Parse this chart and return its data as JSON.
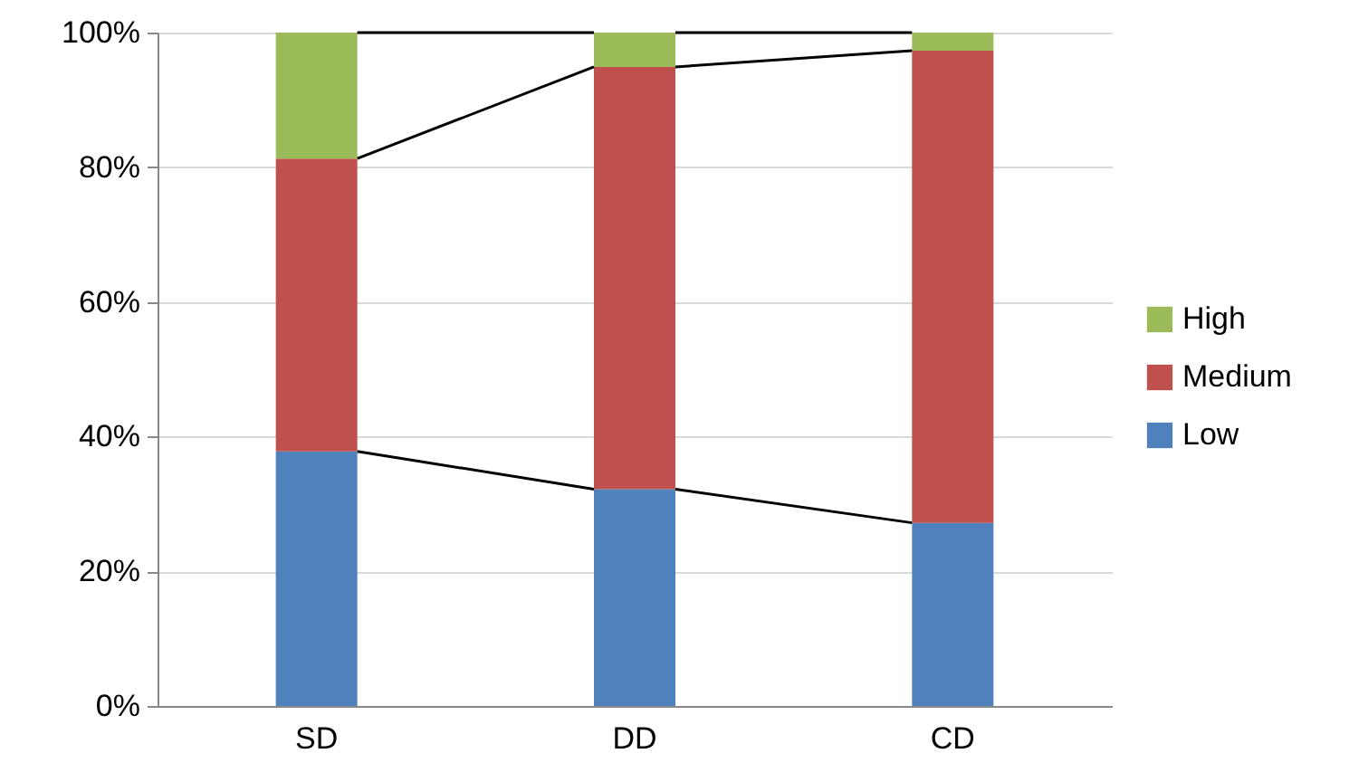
{
  "chart_data": {
    "type": "bar",
    "stacked": true,
    "categories": [
      "SD",
      "DD",
      "CD"
    ],
    "series": [
      {
        "name": "Low",
        "color": "#4f81bd",
        "values": [
          37.8,
          32.2,
          27.2
        ]
      },
      {
        "name": "Medium",
        "color": "#c0504d",
        "values": [
          43.5,
          62.7,
          70.1
        ]
      },
      {
        "name": "High",
        "color": "#9bbb59",
        "values": [
          18.7,
          5.1,
          2.7
        ]
      }
    ],
    "ylim": [
      0,
      100
    ],
    "yticks": [
      {
        "value": 0,
        "label": "0%"
      },
      {
        "value": 20,
        "label": "20%"
      },
      {
        "value": 40,
        "label": "40%"
      },
      {
        "value": 60,
        "label": "60%"
      },
      {
        "value": 80,
        "label": "80%"
      },
      {
        "value": 100,
        "label": "100%"
      }
    ],
    "grid": "y",
    "legend": "right"
  }
}
